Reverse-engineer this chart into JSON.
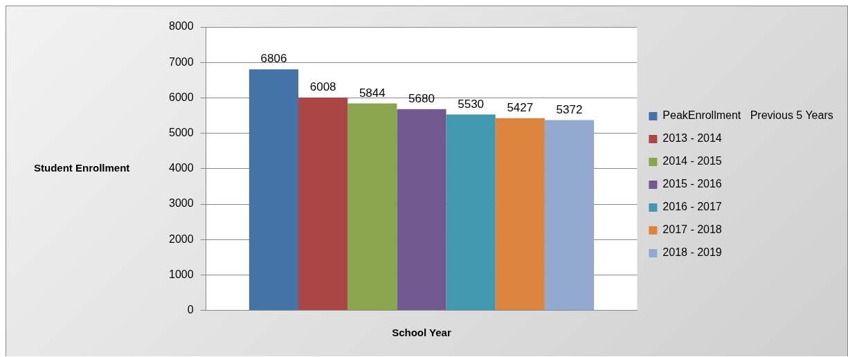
{
  "chart_data": {
    "type": "bar",
    "xlabel": "School Year",
    "ylabel": "Student Enrollment",
    "categories": [
      null
    ],
    "series": [
      {
        "name": "PeakEnrollment   Previous 5 Years",
        "color": "#4572a7",
        "values": [
          6806
        ]
      },
      {
        "name": "2013 - 2014",
        "color": "#aa4643",
        "values": [
          6008
        ]
      },
      {
        "name": "2014 - 2015",
        "color": "#89a54e",
        "values": [
          5844
        ]
      },
      {
        "name": "2015 - 2016",
        "color": "#71588f",
        "values": [
          5680
        ]
      },
      {
        "name": "2016 - 2017",
        "color": "#4198af",
        "values": [
          5530
        ]
      },
      {
        "name": "2017 - 2018",
        "color": "#db843d",
        "values": [
          5427
        ]
      },
      {
        "name": "2018 - 2019",
        "color": "#93a9cf",
        "values": [
          5372
        ]
      }
    ],
    "ylim": [
      0,
      8000
    ],
    "yticks": [
      0,
      1000,
      2000,
      3000,
      4000,
      5000,
      6000,
      7000,
      8000
    ],
    "grid": "y",
    "legend": "right",
    "data_labels": true
  }
}
